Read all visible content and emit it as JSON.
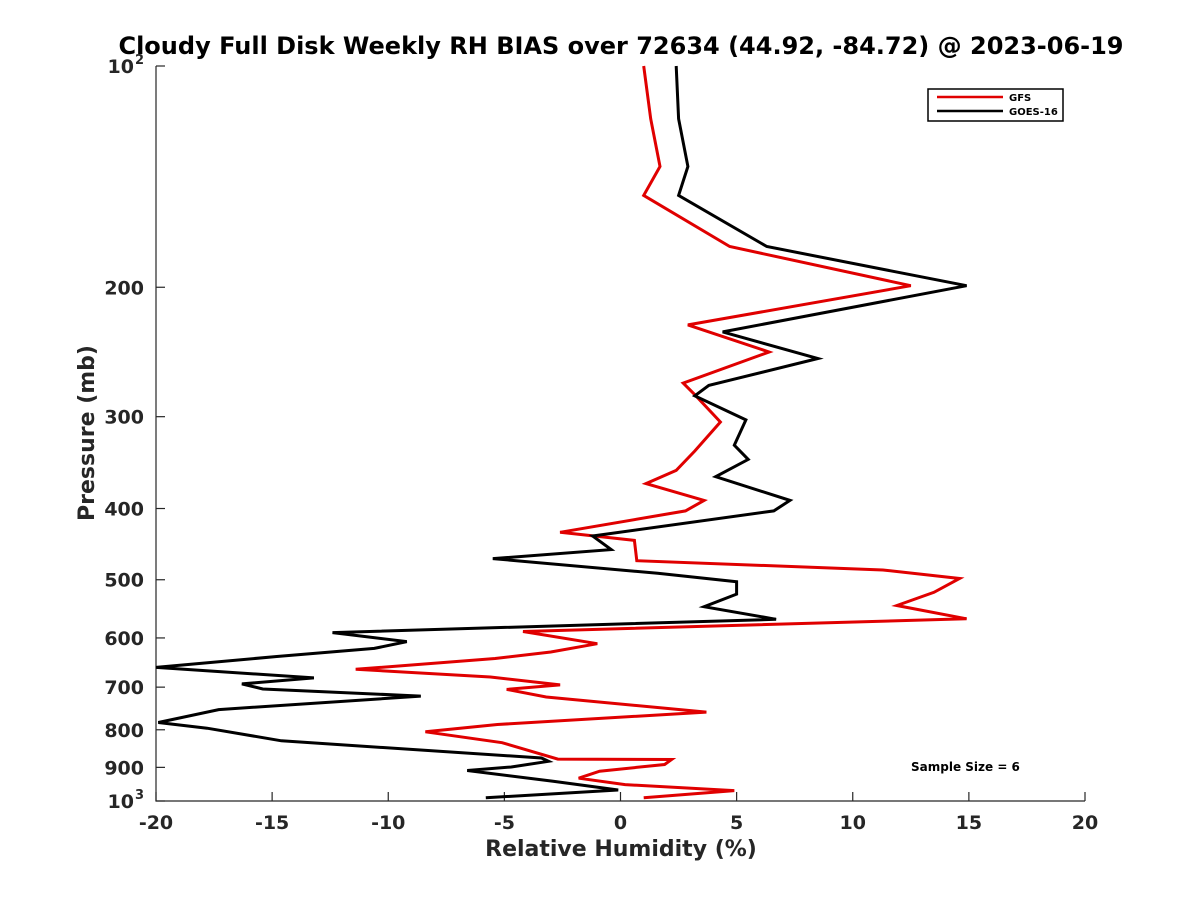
{
  "chart_data": {
    "type": "line",
    "title": "Cloudy Full Disk Weekly RH BIAS over 72634 (44.92, -84.72) @ 2023-06-19",
    "xlabel": "Relative Humidity (%)",
    "ylabel": "Pressure (mb)",
    "xlim": [
      -20,
      20
    ],
    "ylim": [
      100,
      1000
    ],
    "y_scale": "log",
    "y_reversed": true,
    "x_ticks": [
      -20,
      -15,
      -10,
      -5,
      0,
      5,
      10,
      15,
      20
    ],
    "x_tick_labels": [
      "-20",
      "-15",
      "-10",
      "-5",
      "0",
      "5",
      "10",
      "15",
      "20"
    ],
    "y_ticks": [
      100,
      200,
      300,
      400,
      500,
      600,
      700,
      800,
      900,
      1000
    ],
    "y_tick_labels": [
      {
        "base": "10",
        "sup": "2"
      },
      {
        "base": "200",
        "sup": ""
      },
      {
        "base": "300",
        "sup": ""
      },
      {
        "base": "400",
        "sup": ""
      },
      {
        "base": "500",
        "sup": ""
      },
      {
        "base": "600",
        "sup": ""
      },
      {
        "base": "700",
        "sup": ""
      },
      {
        "base": "800",
        "sup": ""
      },
      {
        "base": "900",
        "sup": ""
      },
      {
        "base": "10",
        "sup": "3"
      }
    ],
    "grid": false,
    "legend_position": "top-right",
    "annotation": "Sample Size = 6",
    "series": [
      {
        "name": "GFS",
        "color": "#e00000",
        "points": [
          [
            1.0,
            100
          ],
          [
            1.3,
            118
          ],
          [
            1.7,
            137
          ],
          [
            1.0,
            150
          ],
          [
            4.7,
            176
          ],
          [
            12.5,
            199
          ],
          [
            2.9,
            225
          ],
          [
            6.4,
            245
          ],
          [
            2.7,
            270
          ],
          [
            3.2,
            280
          ],
          [
            4.3,
            305
          ],
          [
            3.2,
            334
          ],
          [
            2.4,
            355
          ],
          [
            1.1,
            370
          ],
          [
            3.6,
            390
          ],
          [
            2.8,
            403
          ],
          [
            -2.6,
            431
          ],
          [
            0.6,
            442
          ],
          [
            0.7,
            471
          ],
          [
            11.3,
            485
          ],
          [
            14.6,
            498
          ],
          [
            13.5,
            520
          ],
          [
            11.9,
            542
          ],
          [
            14.9,
            565
          ],
          [
            -4.2,
            588
          ],
          [
            -1.0,
            611
          ],
          [
            -3.0,
            627
          ],
          [
            -5.4,
            640
          ],
          [
            -11.4,
            662
          ],
          [
            -5.6,
            678
          ],
          [
            -2.6,
            695
          ],
          [
            -4.9,
            705
          ],
          [
            -3.2,
            722
          ],
          [
            3.7,
            757
          ],
          [
            -5.3,
            787
          ],
          [
            -8.4,
            805
          ],
          [
            -5.1,
            833
          ],
          [
            -2.7,
            877
          ],
          [
            2.2,
            878
          ],
          [
            1.9,
            892
          ],
          [
            -0.9,
            911
          ],
          [
            -1.8,
            931
          ],
          [
            0.2,
            950
          ],
          [
            4.9,
            968
          ],
          [
            1.0,
            990
          ]
        ]
      },
      {
        "name": "GOES-16",
        "color": "#000000",
        "points": [
          [
            2.4,
            100
          ],
          [
            2.5,
            118
          ],
          [
            2.9,
            137
          ],
          [
            2.5,
            150
          ],
          [
            6.3,
            176
          ],
          [
            14.9,
            199
          ],
          [
            4.4,
            230
          ],
          [
            8.5,
            250
          ],
          [
            3.8,
            272
          ],
          [
            3.2,
            281
          ],
          [
            5.4,
            303
          ],
          [
            4.9,
            328
          ],
          [
            5.5,
            343
          ],
          [
            4.1,
            362
          ],
          [
            7.3,
            390
          ],
          [
            6.6,
            403
          ],
          [
            -1.2,
            436
          ],
          [
            -0.4,
            455
          ],
          [
            -5.5,
            468
          ],
          [
            1.6,
            490
          ],
          [
            5.0,
            503
          ],
          [
            5.0,
            523
          ],
          [
            3.6,
            544
          ],
          [
            6.7,
            566
          ],
          [
            -12.4,
            590
          ],
          [
            -9.2,
            607
          ],
          [
            -10.6,
            620
          ],
          [
            -14.8,
            636
          ],
          [
            -20.0,
            658
          ],
          [
            -13.2,
            680
          ],
          [
            -16.3,
            693
          ],
          [
            -15.4,
            704
          ],
          [
            -8.6,
            720
          ],
          [
            -17.3,
            751
          ],
          [
            -19.9,
            782
          ],
          [
            -17.8,
            796
          ],
          [
            -14.6,
            828
          ],
          [
            -3.4,
            874
          ],
          [
            -3.1,
            883
          ],
          [
            -4.7,
            899
          ],
          [
            -6.6,
            909
          ],
          [
            -2.9,
            940
          ],
          [
            -0.1,
            966
          ],
          [
            -5.8,
            990
          ]
        ]
      }
    ]
  }
}
